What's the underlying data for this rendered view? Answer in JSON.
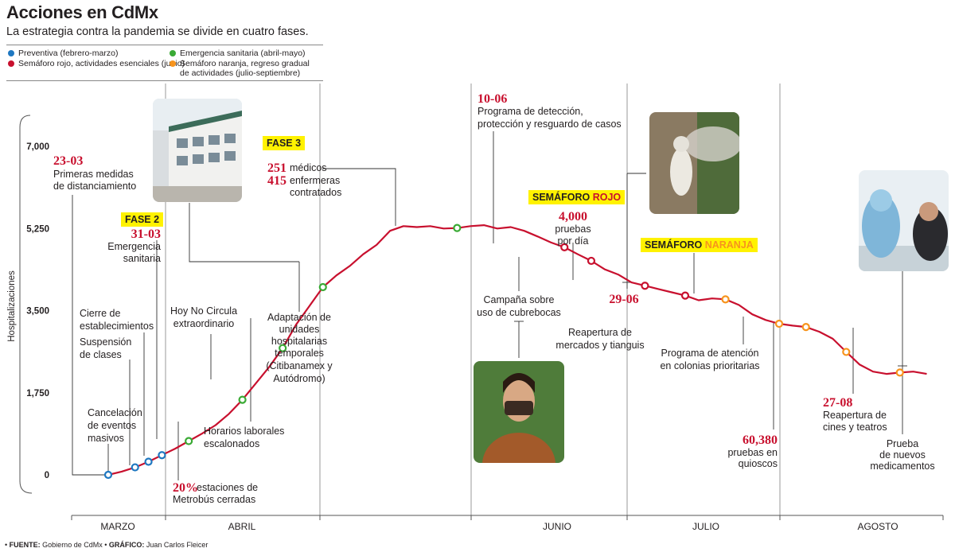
{
  "title": "Acciones en CdMx",
  "subtitle": "La estrategia contra la pandemia se divide en cuatro fases.",
  "legend": [
    {
      "label": "Preventiva (febrero-marzo)",
      "color": "#1f78c1"
    },
    {
      "label": "Semáforo rojo, actividades esenciales (junio)",
      "color": "#c8102e"
    },
    {
      "label": "Emergencia sanitaria (abril-mayo)",
      "color": "#3aaa35"
    },
    {
      "label_line1": "Semáforo naranja, regreso gradual",
      "label_line2": "de actividades  (julio-septiembre)",
      "color": "#f7941d"
    }
  ],
  "footer": {
    "source_label": "FUENTE:",
    "source": "Gobierno de CdMx",
    "graphic_label": "GRÁFICO:",
    "graphic": "Juan Carlos Fleicer"
  },
  "chart_data": {
    "type": "line",
    "ylabel": "Hospitalizaciones",
    "yticks": [
      "7,000",
      "5,250",
      "3,500",
      "1,750",
      "0"
    ],
    "ylim": [
      0,
      7000
    ],
    "months": [
      "MARZO",
      "ABRIL",
      "JUNIO",
      "JULIO",
      "AGOSTO"
    ],
    "line_color": "#c8102e",
    "series": [
      {
        "values": [
          [
            "2020-03-23",
            0
          ],
          [
            "2020-03-26",
            70
          ],
          [
            "2020-03-29",
            160
          ],
          [
            "2020-04-01",
            280
          ],
          [
            "2020-04-04",
            420
          ],
          [
            "2020-04-07",
            560
          ],
          [
            "2020-04-10",
            720
          ],
          [
            "2020-04-13",
            880
          ],
          [
            "2020-04-16",
            1060
          ],
          [
            "2020-04-19",
            1300
          ],
          [
            "2020-04-22",
            1600
          ],
          [
            "2020-04-25",
            1950
          ],
          [
            "2020-04-28",
            2300
          ],
          [
            "2020-05-01",
            2700
          ],
          [
            "2020-05-04",
            3200
          ],
          [
            "2020-05-07",
            3600
          ],
          [
            "2020-05-10",
            4000
          ],
          [
            "2020-05-13",
            4250
          ],
          [
            "2020-05-16",
            4450
          ],
          [
            "2020-05-19",
            4700
          ],
          [
            "2020-05-22",
            4900
          ],
          [
            "2020-05-25",
            5200
          ],
          [
            "2020-05-28",
            5300
          ],
          [
            "2020-05-31",
            5280
          ],
          [
            "2020-06-03",
            5300
          ],
          [
            "2020-06-06",
            5250
          ],
          [
            "2020-06-09",
            5260
          ],
          [
            "2020-06-12",
            5300
          ],
          [
            "2020-06-15",
            5320
          ],
          [
            "2020-06-18",
            5250
          ],
          [
            "2020-06-21",
            5280
          ],
          [
            "2020-06-24",
            5200
          ],
          [
            "2020-06-27",
            5080
          ],
          [
            "2020-06-30",
            4950
          ],
          [
            "2020-07-03",
            4850
          ],
          [
            "2020-07-06",
            4700
          ],
          [
            "2020-07-09",
            4560
          ],
          [
            "2020-07-12",
            4380
          ],
          [
            "2020-07-15",
            4270
          ],
          [
            "2020-07-18",
            4100
          ],
          [
            "2020-07-21",
            4030
          ],
          [
            "2020-07-24",
            3960
          ],
          [
            "2020-07-27",
            3890
          ],
          [
            "2020-07-30",
            3820
          ],
          [
            "2020-08-02",
            3720
          ],
          [
            "2020-08-05",
            3760
          ],
          [
            "2020-08-08",
            3740
          ],
          [
            "2020-08-11",
            3620
          ],
          [
            "2020-08-14",
            3420
          ],
          [
            "2020-08-17",
            3300
          ],
          [
            "2020-08-20",
            3220
          ],
          [
            "2020-08-23",
            3180
          ],
          [
            "2020-08-26",
            3150
          ],
          [
            "2020-08-29",
            3050
          ],
          [
            "2020-09-01",
            2900
          ],
          [
            "2020-09-04",
            2620
          ],
          [
            "2020-09-07",
            2350
          ],
          [
            "2020-09-10",
            2200
          ],
          [
            "2020-09-13",
            2150
          ],
          [
            "2020-09-16",
            2180
          ],
          [
            "2020-09-19",
            2200
          ],
          [
            "2020-09-22",
            2150
          ]
        ]
      }
    ],
    "markers": [
      {
        "date": "2020-03-23",
        "value": 0,
        "phase": "preventiva",
        "color": "#1f78c1"
      },
      {
        "date": "2020-03-29",
        "value": 160,
        "phase": "preventiva",
        "color": "#1f78c1"
      },
      {
        "date": "2020-04-01",
        "value": 280,
        "phase": "preventiva",
        "color": "#1f78c1"
      },
      {
        "date": "2020-04-04",
        "value": 420,
        "phase": "preventiva",
        "color": "#1f78c1"
      },
      {
        "date": "2020-04-10",
        "value": 720,
        "phase": "emergencia",
        "color": "#3aaa35"
      },
      {
        "date": "2020-04-22",
        "value": 1600,
        "phase": "emergencia",
        "color": "#3aaa35"
      },
      {
        "date": "2020-05-01",
        "value": 2700,
        "phase": "emergencia",
        "color": "#3aaa35"
      },
      {
        "date": "2020-05-10",
        "value": 4000,
        "phase": "emergencia",
        "color": "#3aaa35"
      },
      {
        "date": "2020-06-09",
        "value": 5260,
        "phase": "emergencia",
        "color": "#3aaa35"
      },
      {
        "date": "2020-07-03",
        "value": 4850,
        "phase": "rojo",
        "color": "#c8102e"
      },
      {
        "date": "2020-07-09",
        "value": 4560,
        "phase": "rojo",
        "color": "#c8102e"
      },
      {
        "date": "2020-07-21",
        "value": 4030,
        "phase": "rojo",
        "color": "#c8102e"
      },
      {
        "date": "2020-07-30",
        "value": 3820,
        "phase": "rojo",
        "color": "#c8102e"
      },
      {
        "date": "2020-08-08",
        "value": 3740,
        "phase": "naranja",
        "color": "#f7941d"
      },
      {
        "date": "2020-08-20",
        "value": 3220,
        "phase": "naranja",
        "color": "#f7941d"
      },
      {
        "date": "2020-08-26",
        "value": 3150,
        "phase": "naranja",
        "color": "#f7941d"
      },
      {
        "date": "2020-09-04",
        "value": 2620,
        "phase": "naranja",
        "color": "#f7941d"
      },
      {
        "date": "2020-09-16",
        "value": 2180,
        "phase": "naranja",
        "color": "#f7941d"
      }
    ]
  },
  "annotations": {
    "a2303": {
      "date": "23-03",
      "l1": "Primeras medidas",
      "l2": "de distanciamiento"
    },
    "fase2": "FASE 2",
    "a3103": {
      "date": "31-03",
      "l1": "Emergencia",
      "l2": "sanitaria"
    },
    "cierre": {
      "l1": "Cierre de",
      "l2": "establecimientos"
    },
    "suspension": {
      "l1": "Suspensión",
      "l2": "de clases"
    },
    "cancelacion": {
      "l1": "Cancelación",
      "l2": "de eventos",
      "l3": "masivos"
    },
    "metrobus": {
      "num": "20%",
      "l1": "estaciones de",
      "l2": "Metrobús cerradas"
    },
    "hoynocircula": {
      "l1": "Hoy No Circula",
      "l2": "extraordinario"
    },
    "horarios": {
      "l1": "Horarios laborales",
      "l2": "escalonados"
    },
    "adaptacion": {
      "l1": "Adaptación de",
      "l2": "unidades",
      "l3": "hospitalarias",
      "l4": "temporales",
      "l5": "(Citibanamex y",
      "l6": "Autódromo)"
    },
    "fase3": "FASE 3",
    "medicos": {
      "n1": "251",
      "t1": "médicos",
      "n2": "415",
      "t2": "enfermeras",
      "t3": "contratados"
    },
    "a1006": {
      "date": "10-06",
      "l1": "Programa de detección,",
      "l2": "protección y resguardo de casos"
    },
    "semaforo_rojo": {
      "a": "SEMÁFORO ",
      "b": "ROJO"
    },
    "pruebas": {
      "n": "4,000",
      "l1": "pruebas",
      "l2": "por día"
    },
    "campana": {
      "l1": "Campaña sobre",
      "l2": "uso de cubrebocas"
    },
    "a2906": {
      "date": "29-06",
      "l1": "Reapertura de",
      "l2": "mercados y tianguis"
    },
    "semaforo_naranja": {
      "a": "SEMÁFORO ",
      "b": "NARANJA"
    },
    "programa_colonias": {
      "l1": "Programa de atención",
      "l2": "en colonias prioritarias"
    },
    "quioscos": {
      "n": "60,380",
      "l1": "pruebas en",
      "l2": "quioscos"
    },
    "a2708": {
      "date": "27-08",
      "l1": "Reapertura de",
      "l2": "cines y teatros"
    },
    "medicamentos": {
      "l1": "Prueba",
      "l2": "de nuevos",
      "l3": "medicamentos"
    }
  }
}
